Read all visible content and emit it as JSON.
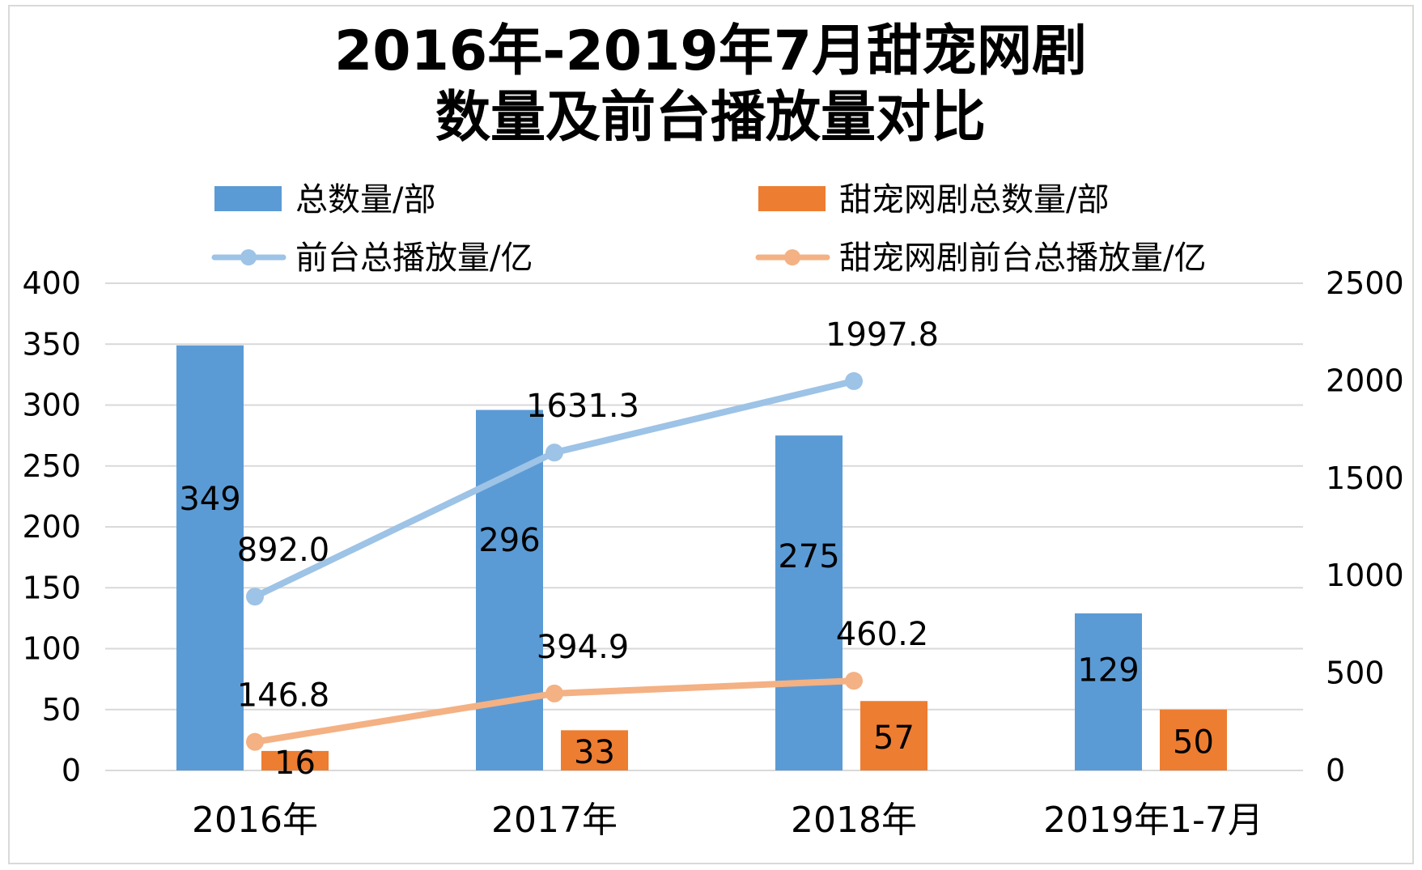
{
  "chart_data": {
    "type": "bar",
    "title": "2016年-2019年7月甜宠网剧",
    "subtitle": "数量及前台播放量对比",
    "categories": [
      "2016年",
      "2017年",
      "2018年",
      "2019年1-7月"
    ],
    "y_left": {
      "ylim": [
        0,
        400
      ],
      "ticks": [
        "0",
        "50",
        "100",
        "150",
        "200",
        "250",
        "300",
        "350",
        "400"
      ]
    },
    "y_right": {
      "ylim": [
        0,
        2500
      ],
      "ticks": [
        "0",
        "500",
        "1000",
        "1500",
        "2000",
        "2500"
      ]
    },
    "series": [
      {
        "name": "总数量/部",
        "kind": "bar",
        "axis": "left",
        "color": "#5b9bd5",
        "values": [
          349,
          296,
          275,
          129
        ],
        "labels": [
          "349",
          "296",
          "275",
          "129"
        ]
      },
      {
        "name": "甜宠网剧总数量/部",
        "kind": "bar",
        "axis": "left",
        "color": "#ed7d31",
        "values": [
          16,
          33,
          57,
          50
        ],
        "labels": [
          "16",
          "33",
          "57",
          "50"
        ]
      },
      {
        "name": "前台总播放量/亿",
        "kind": "line",
        "axis": "right",
        "color": "#9dc3e6",
        "values": [
          892.0,
          1631.3,
          1997.8,
          null
        ],
        "labels": [
          "892.0",
          "1631.3",
          "1997.8",
          null
        ]
      },
      {
        "name": "甜宠网剧前台总播放量/亿",
        "kind": "line",
        "axis": "right",
        "color": "#f4b183",
        "values": [
          146.8,
          394.9,
          460.2,
          null
        ],
        "labels": [
          "146.8",
          "394.9",
          "460.2",
          null
        ]
      }
    ],
    "grid": true,
    "legend_position": "top"
  }
}
